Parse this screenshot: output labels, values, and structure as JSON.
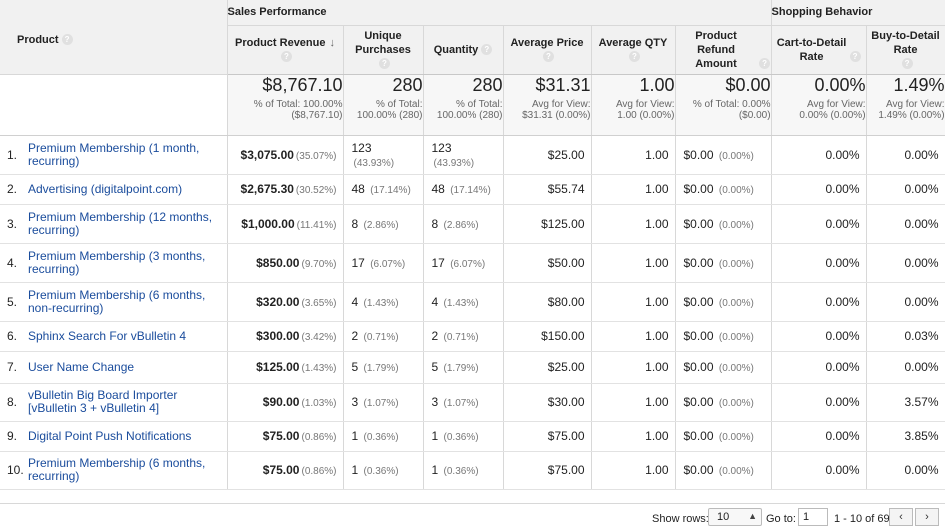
{
  "header": {
    "product": "Product",
    "groups": {
      "sales": "Sales Performance",
      "shopping": "Shopping Behavior"
    },
    "columns": [
      "Product Revenue",
      "Unique Purchases",
      "Quantity",
      "Average Price",
      "Average QTY",
      "Product Refund Amount",
      "Cart-to-Detail Rate",
      "Buy-to-Detail Rate"
    ]
  },
  "totals": [
    {
      "value": "$8,767.10",
      "sub1": "% of Total: 100.00%",
      "sub2": "($8,767.10)"
    },
    {
      "value": "280",
      "sub1": "% of Total:",
      "sub2": "100.00% (280)"
    },
    {
      "value": "280",
      "sub1": "% of Total:",
      "sub2": "100.00% (280)"
    },
    {
      "value": "$31.31",
      "sub1": "Avg for View:",
      "sub2": "$31.31 (0.00%)"
    },
    {
      "value": "1.00",
      "sub1": "Avg for View:",
      "sub2": "1.00 (0.00%)"
    },
    {
      "value": "$0.00",
      "sub1": "% of Total: 0.00%",
      "sub2": "($0.00)"
    },
    {
      "value": "0.00%",
      "sub1": "Avg for View:",
      "sub2": "0.00% (0.00%)"
    },
    {
      "value": "1.49%",
      "sub1": "Avg for View:",
      "sub2": "1.49% (0.00%)"
    }
  ],
  "rows": [
    {
      "idx": "1.",
      "product": "Premium Membership (1 month, recurring)",
      "revenue": "$3,075.00",
      "revenue_pct": "(35.07%)",
      "unique": "123",
      "unique_pct": "(43.93%)",
      "qty": "123",
      "qty_pct": "(43.93%)",
      "avg_price": "$25.00",
      "avg_qty": "1.00",
      "refund": "$0.00",
      "refund_pct": "(0.00%)",
      "cart_rate": "0.00%",
      "buy_rate": "0.00%"
    },
    {
      "idx": "2.",
      "product": "Advertising (digitalpoint.com)",
      "revenue": "$2,675.30",
      "revenue_pct": "(30.52%)",
      "unique": "48",
      "unique_pct": "(17.14%)",
      "qty": "48",
      "qty_pct": "(17.14%)",
      "avg_price": "$55.74",
      "avg_qty": "1.00",
      "refund": "$0.00",
      "refund_pct": "(0.00%)",
      "cart_rate": "0.00%",
      "buy_rate": "0.00%"
    },
    {
      "idx": "3.",
      "product": "Premium Membership (12 months, recurring)",
      "revenue": "$1,000.00",
      "revenue_pct": "(11.41%)",
      "unique": "8",
      "unique_pct": "(2.86%)",
      "qty": "8",
      "qty_pct": "(2.86%)",
      "avg_price": "$125.00",
      "avg_qty": "1.00",
      "refund": "$0.00",
      "refund_pct": "(0.00%)",
      "cart_rate": "0.00%",
      "buy_rate": "0.00%"
    },
    {
      "idx": "4.",
      "product": "Premium Membership (3 months, recurring)",
      "revenue": "$850.00",
      "revenue_pct": "(9.70%)",
      "unique": "17",
      "unique_pct": "(6.07%)",
      "qty": "17",
      "qty_pct": "(6.07%)",
      "avg_price": "$50.00",
      "avg_qty": "1.00",
      "refund": "$0.00",
      "refund_pct": "(0.00%)",
      "cart_rate": "0.00%",
      "buy_rate": "0.00%"
    },
    {
      "idx": "5.",
      "product": "Premium Membership (6 months, non-recurring)",
      "revenue": "$320.00",
      "revenue_pct": "(3.65%)",
      "unique": "4",
      "unique_pct": "(1.43%)",
      "qty": "4",
      "qty_pct": "(1.43%)",
      "avg_price": "$80.00",
      "avg_qty": "1.00",
      "refund": "$0.00",
      "refund_pct": "(0.00%)",
      "cart_rate": "0.00%",
      "buy_rate": "0.00%"
    },
    {
      "idx": "6.",
      "product": "Sphinx Search For vBulletin 4",
      "revenue": "$300.00",
      "revenue_pct": "(3.42%)",
      "unique": "2",
      "unique_pct": "(0.71%)",
      "qty": "2",
      "qty_pct": "(0.71%)",
      "avg_price": "$150.00",
      "avg_qty": "1.00",
      "refund": "$0.00",
      "refund_pct": "(0.00%)",
      "cart_rate": "0.00%",
      "buy_rate": "0.03%"
    },
    {
      "idx": "7.",
      "product": "User Name Change",
      "revenue": "$125.00",
      "revenue_pct": "(1.43%)",
      "unique": "5",
      "unique_pct": "(1.79%)",
      "qty": "5",
      "qty_pct": "(1.79%)",
      "avg_price": "$25.00",
      "avg_qty": "1.00",
      "refund": "$0.00",
      "refund_pct": "(0.00%)",
      "cart_rate": "0.00%",
      "buy_rate": "0.00%"
    },
    {
      "idx": "8.",
      "product": "vBulletin Big Board Importer [vBulletin 3 + vBulletin 4]",
      "revenue": "$90.00",
      "revenue_pct": "(1.03%)",
      "unique": "3",
      "unique_pct": "(1.07%)",
      "qty": "3",
      "qty_pct": "(1.07%)",
      "avg_price": "$30.00",
      "avg_qty": "1.00",
      "refund": "$0.00",
      "refund_pct": "(0.00%)",
      "cart_rate": "0.00%",
      "buy_rate": "3.57%"
    },
    {
      "idx": "9.",
      "product": "Digital Point Push Notifications",
      "revenue": "$75.00",
      "revenue_pct": "(0.86%)",
      "unique": "1",
      "unique_pct": "(0.36%)",
      "qty": "1",
      "qty_pct": "(0.36%)",
      "avg_price": "$75.00",
      "avg_qty": "1.00",
      "refund": "$0.00",
      "refund_pct": "(0.00%)",
      "cart_rate": "0.00%",
      "buy_rate": "3.85%"
    },
    {
      "idx": "10.",
      "product": "Premium Membership (6 months, recurring)",
      "revenue": "$75.00",
      "revenue_pct": "(0.86%)",
      "unique": "1",
      "unique_pct": "(0.36%)",
      "qty": "1",
      "qty_pct": "(0.36%)",
      "avg_price": "$75.00",
      "avg_qty": "1.00",
      "refund": "$0.00",
      "refund_pct": "(0.00%)",
      "cart_rate": "0.00%",
      "buy_rate": "0.00%"
    }
  ],
  "row_heights": [
    39,
    30,
    39,
    39,
    39,
    30,
    32,
    38,
    30,
    38
  ],
  "footer": {
    "show_rows_label": "Show rows:",
    "show_rows_value": "10",
    "goto_label": "Go to:",
    "goto_value": "1",
    "range": "1 - 10 of 69",
    "prev": "‹",
    "next": "›"
  },
  "icons": {
    "help": "help-circle-icon",
    "sort": "sort-descending-arrow-icon"
  }
}
